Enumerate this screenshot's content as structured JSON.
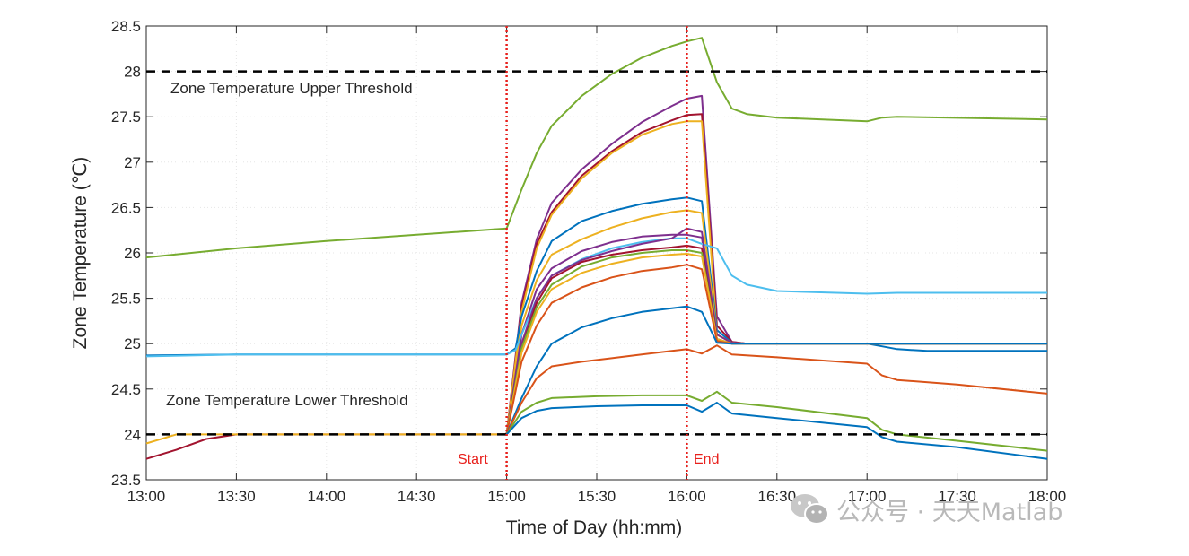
{
  "chart_data": {
    "type": "line",
    "xlabel": "Time of Day (hh:mm)",
    "ylabel": "Zone Temperature (℃)",
    "xlim": [
      0,
      300
    ],
    "ylim": [
      23.5,
      28.5
    ],
    "x_origin": "13:00",
    "xticks": [
      0,
      30,
      60,
      90,
      120,
      150,
      180,
      210,
      240,
      270,
      300
    ],
    "xtick_labels": [
      "13:00",
      "13:30",
      "14:00",
      "14:30",
      "15:00",
      "15:30",
      "16:00",
      "16:30",
      "17:00",
      "17:30",
      "18:00"
    ],
    "yticks": [
      23.5,
      24,
      24.5,
      25,
      25.5,
      26,
      26.5,
      27,
      27.5,
      28,
      28.5
    ],
    "ytick_labels": [
      "23.5",
      "24",
      "24.5",
      "25",
      "25.5",
      "26",
      "26.5",
      "27",
      "27.5",
      "28",
      "28.5"
    ],
    "thresholds": [
      {
        "name": "upper",
        "value": 28,
        "label": "Zone Temperature Upper Threshold",
        "style": "dashed",
        "color": "#000000"
      },
      {
        "name": "lower",
        "value": 24,
        "label": "Zone Temperature Lower Threshold",
        "style": "dashed",
        "color": "#000000"
      }
    ],
    "events": [
      {
        "name": "start",
        "x": 120,
        "label": "Start",
        "color": "#e8201c"
      },
      {
        "name": "end",
        "x": 180,
        "label": "End",
        "color": "#e8201c"
      }
    ],
    "series": [
      {
        "name": "zone-1",
        "color": "#77ac30",
        "points": [
          [
            0,
            25.95
          ],
          [
            30,
            26.05
          ],
          [
            60,
            26.13
          ],
          [
            90,
            26.2
          ],
          [
            120,
            26.27
          ],
          [
            125,
            26.7
          ],
          [
            130,
            27.1
          ],
          [
            135,
            27.4
          ],
          [
            145,
            27.73
          ],
          [
            155,
            27.97
          ],
          [
            165,
            28.15
          ],
          [
            175,
            28.28
          ],
          [
            180,
            28.33
          ],
          [
            185,
            28.37
          ],
          [
            190,
            27.88
          ],
          [
            195,
            27.59
          ],
          [
            200,
            27.53
          ],
          [
            210,
            27.49
          ],
          [
            240,
            27.45
          ],
          [
            245,
            27.49
          ],
          [
            250,
            27.5
          ],
          [
            300,
            27.47
          ]
        ]
      },
      {
        "name": "zone-2",
        "color": "#7e2f8e",
        "points": [
          [
            120,
            24
          ],
          [
            125,
            25.45
          ],
          [
            130,
            26.15
          ],
          [
            135,
            26.55
          ],
          [
            145,
            26.92
          ],
          [
            155,
            27.2
          ],
          [
            165,
            27.44
          ],
          [
            175,
            27.62
          ],
          [
            180,
            27.7
          ],
          [
            185,
            27.73
          ],
          [
            190,
            25.3
          ],
          [
            195,
            25.02
          ],
          [
            200,
            25
          ],
          [
            300,
            25
          ]
        ]
      },
      {
        "name": "zone-3",
        "color": "#a2142f",
        "points": [
          [
            0,
            23.73
          ],
          [
            10,
            23.83
          ],
          [
            20,
            23.95
          ],
          [
            30,
            24
          ],
          [
            120,
            24
          ],
          [
            125,
            25.4
          ],
          [
            130,
            26.1
          ],
          [
            135,
            26.45
          ],
          [
            145,
            26.85
          ],
          [
            155,
            27.12
          ],
          [
            165,
            27.33
          ],
          [
            175,
            27.46
          ],
          [
            180,
            27.52
          ],
          [
            185,
            27.53
          ],
          [
            190,
            25.2
          ],
          [
            195,
            25.02
          ],
          [
            200,
            25
          ],
          [
            300,
            25
          ]
        ]
      },
      {
        "name": "zone-4",
        "color": "#edb120",
        "points": [
          [
            0,
            23.9
          ],
          [
            10,
            24
          ],
          [
            120,
            24
          ],
          [
            125,
            25.35
          ],
          [
            130,
            26.05
          ],
          [
            135,
            26.42
          ],
          [
            145,
            26.82
          ],
          [
            155,
            27.1
          ],
          [
            165,
            27.3
          ],
          [
            175,
            27.42
          ],
          [
            180,
            27.45
          ],
          [
            185,
            27.45
          ],
          [
            190,
            25.1
          ],
          [
            195,
            25.01
          ],
          [
            200,
            25
          ],
          [
            300,
            25
          ]
        ]
      },
      {
        "name": "zone-5",
        "color": "#0072bd",
        "points": [
          [
            0,
            24.87
          ],
          [
            30,
            24.88
          ],
          [
            120,
            24.88
          ],
          [
            123,
            24.95
          ],
          [
            125,
            25.3
          ],
          [
            130,
            25.8
          ],
          [
            135,
            26.13
          ],
          [
            145,
            26.35
          ],
          [
            155,
            26.46
          ],
          [
            165,
            26.54
          ],
          [
            175,
            26.59
          ],
          [
            180,
            26.61
          ],
          [
            185,
            26.57
          ],
          [
            190,
            25.15
          ],
          [
            195,
            25.01
          ],
          [
            200,
            25
          ],
          [
            240,
            25
          ],
          [
            245,
            24.97
          ],
          [
            250,
            24.94
          ],
          [
            260,
            24.92
          ],
          [
            300,
            24.92
          ]
        ]
      },
      {
        "name": "zone-6",
        "color": "#edb120",
        "points": [
          [
            120,
            24
          ],
          [
            125,
            25.2
          ],
          [
            130,
            25.7
          ],
          [
            135,
            25.98
          ],
          [
            145,
            26.15
          ],
          [
            155,
            26.28
          ],
          [
            165,
            26.38
          ],
          [
            175,
            26.45
          ],
          [
            180,
            26.47
          ],
          [
            185,
            26.44
          ],
          [
            190,
            25.1
          ],
          [
            195,
            25.01
          ],
          [
            200,
            25
          ],
          [
            300,
            25
          ]
        ]
      },
      {
        "name": "zone-7",
        "color": "#7e2f8e",
        "points": [
          [
            120,
            24
          ],
          [
            125,
            25.1
          ],
          [
            130,
            25.6
          ],
          [
            135,
            25.83
          ],
          [
            145,
            26.02
          ],
          [
            155,
            26.12
          ],
          [
            165,
            26.18
          ],
          [
            175,
            26.2
          ],
          [
            180,
            26.2
          ],
          [
            185,
            26.17
          ],
          [
            190,
            25.05
          ],
          [
            195,
            25
          ],
          [
            300,
            25
          ]
        ]
      },
      {
        "name": "zone-8",
        "color": "#4dbeee",
        "points": [
          [
            0,
            24.86
          ],
          [
            30,
            24.88
          ],
          [
            120,
            24.88
          ],
          [
            123,
            24.93
          ],
          [
            125,
            25.1
          ],
          [
            130,
            25.5
          ],
          [
            135,
            25.75
          ],
          [
            145,
            25.93
          ],
          [
            155,
            26.05
          ],
          [
            165,
            26.12
          ],
          [
            175,
            26.16
          ],
          [
            180,
            26.16
          ],
          [
            185,
            26.1
          ],
          [
            190,
            26.05
          ],
          [
            195,
            25.75
          ],
          [
            200,
            25.65
          ],
          [
            210,
            25.58
          ],
          [
            240,
            25.55
          ],
          [
            250,
            25.56
          ],
          [
            300,
            25.56
          ]
        ]
      },
      {
        "name": "zone-9",
        "color": "#7e2f8e",
        "points": [
          [
            120,
            24
          ],
          [
            125,
            25
          ],
          [
            130,
            25.5
          ],
          [
            135,
            25.75
          ],
          [
            145,
            25.92
          ],
          [
            155,
            26.02
          ],
          [
            165,
            26.1
          ],
          [
            175,
            26.16
          ],
          [
            180,
            26.27
          ],
          [
            185,
            26.23
          ],
          [
            190,
            25.1
          ],
          [
            195,
            25.01
          ],
          [
            200,
            25
          ],
          [
            300,
            25
          ]
        ]
      },
      {
        "name": "zone-10",
        "color": "#a2142f",
        "points": [
          [
            120,
            24
          ],
          [
            125,
            24.95
          ],
          [
            130,
            25.45
          ],
          [
            135,
            25.72
          ],
          [
            145,
            25.9
          ],
          [
            155,
            25.98
          ],
          [
            165,
            26.03
          ],
          [
            175,
            26.06
          ],
          [
            180,
            26.08
          ],
          [
            185,
            26.05
          ],
          [
            190,
            25.05
          ],
          [
            195,
            25
          ],
          [
            300,
            25
          ]
        ]
      },
      {
        "name": "zone-11",
        "color": "#77ac30",
        "points": [
          [
            120,
            24
          ],
          [
            125,
            24.95
          ],
          [
            130,
            25.4
          ],
          [
            135,
            25.65
          ],
          [
            145,
            25.85
          ],
          [
            155,
            25.95
          ],
          [
            165,
            26
          ],
          [
            175,
            26.03
          ],
          [
            180,
            26.03
          ],
          [
            185,
            26
          ],
          [
            190,
            25.05
          ],
          [
            195,
            25
          ],
          [
            300,
            25
          ]
        ]
      },
      {
        "name": "zone-12",
        "color": "#edb120",
        "points": [
          [
            120,
            24
          ],
          [
            125,
            24.9
          ],
          [
            130,
            25.35
          ],
          [
            135,
            25.6
          ],
          [
            145,
            25.78
          ],
          [
            155,
            25.88
          ],
          [
            165,
            25.95
          ],
          [
            175,
            25.98
          ],
          [
            180,
            25.99
          ],
          [
            185,
            25.96
          ],
          [
            190,
            25.05
          ],
          [
            195,
            25
          ],
          [
            300,
            25
          ]
        ]
      },
      {
        "name": "zone-13",
        "color": "#d95319",
        "points": [
          [
            120,
            24
          ],
          [
            125,
            24.8
          ],
          [
            130,
            25.2
          ],
          [
            135,
            25.45
          ],
          [
            145,
            25.62
          ],
          [
            155,
            25.73
          ],
          [
            165,
            25.8
          ],
          [
            175,
            25.84
          ],
          [
            180,
            25.87
          ],
          [
            185,
            25.82
          ],
          [
            190,
            25.03
          ],
          [
            195,
            25
          ],
          [
            300,
            25
          ]
        ]
      },
      {
        "name": "zone-14",
        "color": "#0072bd",
        "points": [
          [
            120,
            24
          ],
          [
            125,
            24.4
          ],
          [
            130,
            24.75
          ],
          [
            135,
            25
          ],
          [
            145,
            25.18
          ],
          [
            155,
            25.28
          ],
          [
            165,
            25.35
          ],
          [
            175,
            25.39
          ],
          [
            180,
            25.41
          ],
          [
            185,
            25.35
          ],
          [
            190,
            25.01
          ],
          [
            195,
            25
          ],
          [
            300,
            25
          ]
        ]
      },
      {
        "name": "zone-15",
        "color": "#d95319",
        "points": [
          [
            120,
            24
          ],
          [
            125,
            24.35
          ],
          [
            130,
            24.62
          ],
          [
            135,
            24.75
          ],
          [
            145,
            24.8
          ],
          [
            155,
            24.84
          ],
          [
            165,
            24.88
          ],
          [
            175,
            24.92
          ],
          [
            180,
            24.94
          ],
          [
            185,
            24.89
          ],
          [
            190,
            24.98
          ],
          [
            195,
            24.88
          ],
          [
            210,
            24.85
          ],
          [
            240,
            24.78
          ],
          [
            245,
            24.65
          ],
          [
            250,
            24.6
          ],
          [
            270,
            24.55
          ],
          [
            300,
            24.45
          ]
        ]
      },
      {
        "name": "zone-16",
        "color": "#77ac30",
        "points": [
          [
            120,
            24
          ],
          [
            125,
            24.25
          ],
          [
            130,
            24.35
          ],
          [
            135,
            24.4
          ],
          [
            150,
            24.42
          ],
          [
            165,
            24.43
          ],
          [
            180,
            24.43
          ],
          [
            185,
            24.37
          ],
          [
            190,
            24.47
          ],
          [
            195,
            24.35
          ],
          [
            210,
            24.3
          ],
          [
            240,
            24.18
          ],
          [
            245,
            24.05
          ],
          [
            250,
            24
          ],
          [
            270,
            23.93
          ],
          [
            300,
            23.82
          ]
        ]
      },
      {
        "name": "zone-17",
        "color": "#0072bd",
        "points": [
          [
            120,
            24
          ],
          [
            125,
            24.18
          ],
          [
            130,
            24.26
          ],
          [
            135,
            24.29
          ],
          [
            150,
            24.31
          ],
          [
            165,
            24.32
          ],
          [
            180,
            24.32
          ],
          [
            185,
            24.25
          ],
          [
            190,
            24.35
          ],
          [
            195,
            24.23
          ],
          [
            210,
            24.18
          ],
          [
            240,
            24.08
          ],
          [
            245,
            23.97
          ],
          [
            250,
            23.92
          ],
          [
            270,
            23.86
          ],
          [
            300,
            23.73
          ]
        ]
      }
    ]
  },
  "watermark": {
    "text": "公众号 · 天天Matlab"
  }
}
